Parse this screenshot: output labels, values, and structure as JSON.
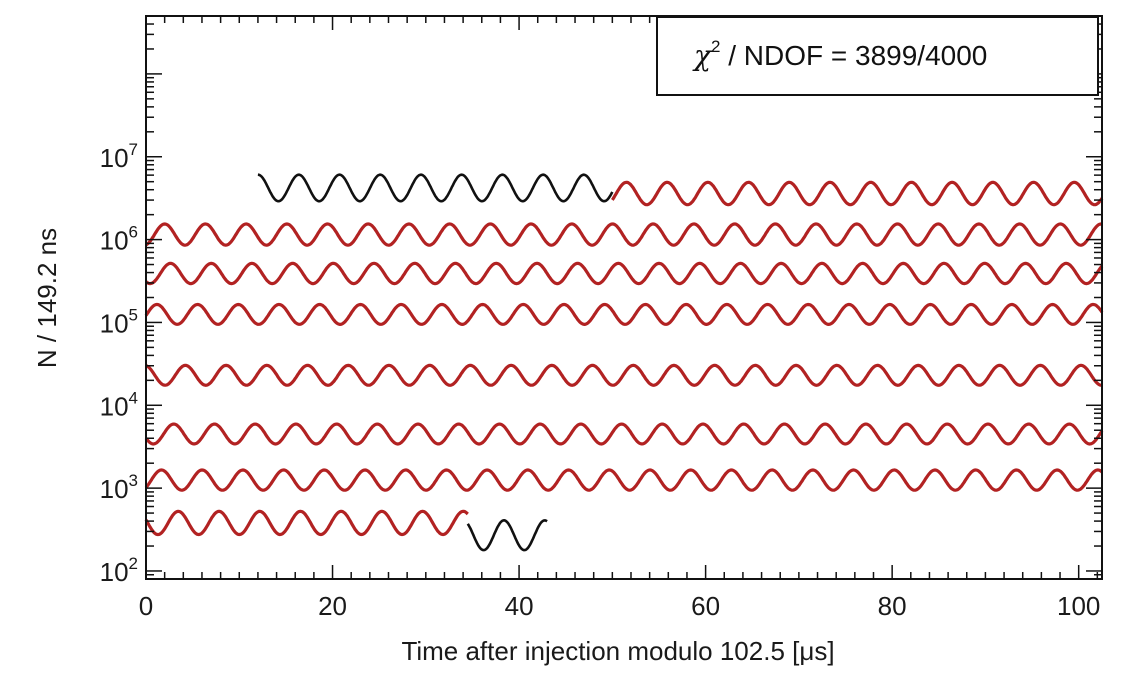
{
  "chart_data": {
    "type": "line",
    "ylabel": "N / 149.2 ns",
    "xlabel": "Time after injection modulo 102.5 [μs]",
    "annotation": {
      "chi2_symbol": "χ",
      "chi2_exponent": "2",
      "text": " / NDOF = 3899/4000"
    },
    "xlim": [
      0,
      102.5
    ],
    "ylim": [
      80,
      500000000
    ],
    "y_scale": "log",
    "x_ticks": [
      {
        "value": 0,
        "label": "0"
      },
      {
        "value": 20,
        "label": "20"
      },
      {
        "value": 40,
        "label": "40"
      },
      {
        "value": 60,
        "label": "60"
      },
      {
        "value": 80,
        "label": "80"
      },
      {
        "value": 100,
        "label": "100"
      }
    ],
    "y_ticks": [
      {
        "value": 100,
        "base": "10",
        "exp": "2"
      },
      {
        "value": 1000,
        "base": "10",
        "exp": "3"
      },
      {
        "value": 10000,
        "base": "10",
        "exp": "4"
      },
      {
        "value": 100000,
        "base": "10",
        "exp": "5"
      },
      {
        "value": 1000000,
        "base": "10",
        "exp": "6"
      },
      {
        "value": 10000000,
        "base": "10",
        "exp": "7"
      }
    ],
    "wiggle": {
      "period_us": 4.365,
      "colors": {
        "data": "#111111",
        "fit": "#b22222"
      }
    },
    "segments": [
      {
        "x_start": 12.0,
        "x_end": 50.0,
        "y_center": 4200000,
        "amplitude_decades": 0.16,
        "phase": 1.55,
        "fit": false
      },
      {
        "x_start": 50.0,
        "x_end": 102.5,
        "y_center": 3600000,
        "amplitude_decades": 0.135,
        "phase": 1.25,
        "fit": true
      },
      {
        "x_start": 0,
        "x_end": 102.5,
        "y_center": 1150000,
        "amplitude_decades": 0.128,
        "phase": 3.4,
        "fit": true
      },
      {
        "x_start": 0,
        "x_end": 102.5,
        "y_center": 390000,
        "amplitude_decades": 0.122,
        "phase": 2.5,
        "fit": true
      },
      {
        "x_start": 0,
        "x_end": 102.5,
        "y_center": 125000,
        "amplitude_decades": 0.12,
        "phase": 4.6,
        "fit": true
      },
      {
        "x_start": 0,
        "x_end": 102.5,
        "y_center": 23000,
        "amplitude_decades": 0.12,
        "phase": 0.2,
        "fit": true
      },
      {
        "x_start": 0,
        "x_end": 102.5,
        "y_center": 4500,
        "amplitude_decades": 0.12,
        "phase": 2.0,
        "fit": true
      },
      {
        "x_start": 0,
        "x_end": 102.5,
        "y_center": 1250,
        "amplitude_decades": 0.122,
        "phase": 3.9,
        "fit": true
      },
      {
        "x_start": 0,
        "x_end": 34.5,
        "y_center": 380,
        "amplitude_decades": 0.14,
        "phase": 1.3,
        "fit": true
      },
      {
        "x_start": 34.5,
        "x_end": 43.0,
        "y_center": 270,
        "amplitude_decades": 0.18,
        "phase": 1.3,
        "fit": false
      }
    ]
  }
}
